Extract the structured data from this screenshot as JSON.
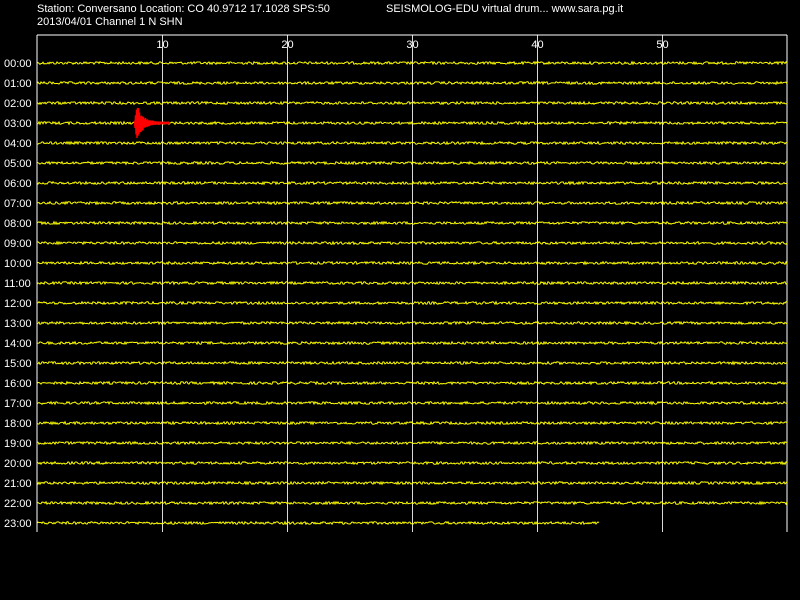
{
  "header": {
    "station_line": "Station: Conversano Location: CO 40.9712 17.1028 SPS:50",
    "app_line": "SEISMOLOG-EDU virtual drum... www.sara.pg.it",
    "date_line": "2013/04/01  Channel 1 N SHN"
  },
  "colors": {
    "background": "#000000",
    "trace": "#ffff00",
    "event": "#ff0000",
    "grid": "#ffffff",
    "text": "#ffffff"
  },
  "chart_data": {
    "type": "line",
    "title": "",
    "xlabel": "",
    "ylabel": "",
    "xlim": [
      0,
      60
    ],
    "x_ticks": [
      10,
      20,
      30,
      40,
      50
    ],
    "grid": true,
    "rows": [
      "00:00",
      "01:00",
      "02:00",
      "03:00",
      "04:00",
      "05:00",
      "06:00",
      "07:00",
      "08:00",
      "09:00",
      "10:00",
      "11:00",
      "12:00",
      "13:00",
      "14:00",
      "15:00",
      "16:00",
      "17:00",
      "18:00",
      "19:00",
      "20:00",
      "21:00",
      "22:00",
      "23:00"
    ],
    "row_end_minute": [
      60,
      60,
      60,
      60,
      60,
      60,
      60,
      60,
      60,
      60,
      60,
      60,
      60,
      60,
      60,
      60,
      60,
      60,
      60,
      60,
      60,
      60,
      60,
      45
    ],
    "events": [
      {
        "row": "03:00",
        "start_minute": 7.8,
        "end_minute": 10.6,
        "peak_minute": 8.0
      }
    ]
  }
}
